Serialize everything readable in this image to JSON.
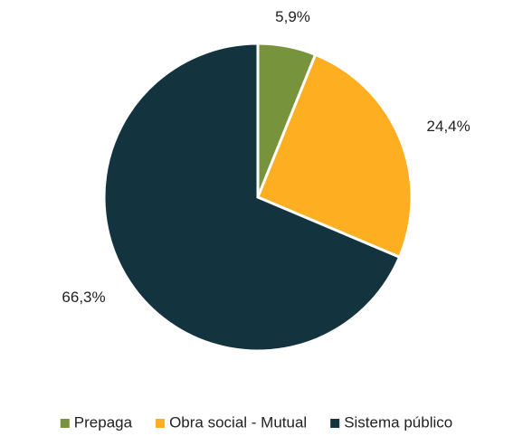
{
  "chart_data": {
    "type": "pie",
    "categories": [
      "Prepaga",
      "Obra social - Mutual",
      "Sistema público"
    ],
    "values": [
      5.9,
      24.4,
      66.3
    ],
    "value_labels": [
      "5,9%",
      "24,4%",
      "66,3%"
    ],
    "colors": [
      "#77933c",
      "#fdae21",
      "#13333f"
    ],
    "legend": "bottom"
  }
}
